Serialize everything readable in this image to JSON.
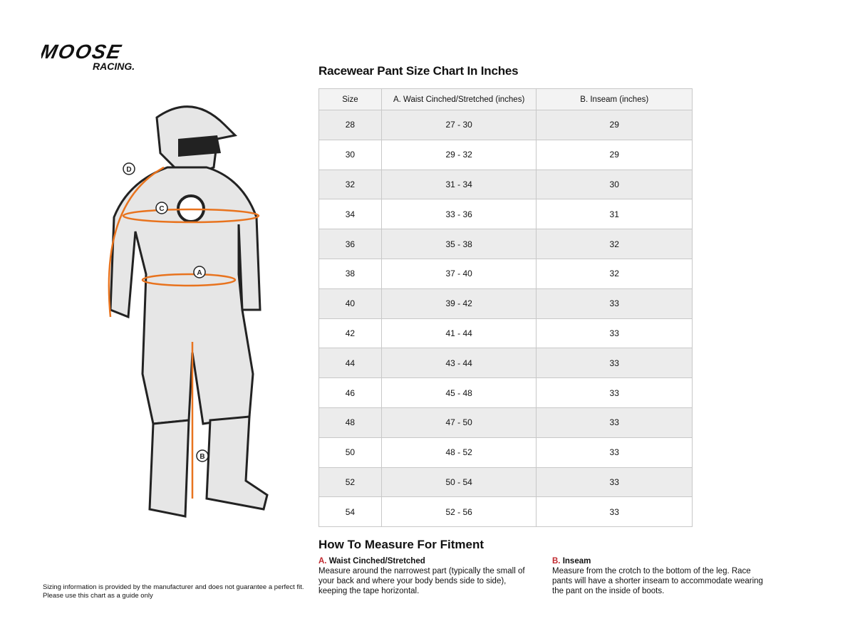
{
  "logo": {
    "text": "MOOSE RACING."
  },
  "table": {
    "title": "Racewear Pant Size Chart In Inches",
    "headers": [
      "Size",
      "A. Waist Cinched/Stretched (inches)",
      "B. Inseam (inches)"
    ],
    "rows": [
      [
        "28",
        "27 - 30",
        "29"
      ],
      [
        "30",
        "29 - 32",
        "29"
      ],
      [
        "32",
        "31 - 34",
        "30"
      ],
      [
        "34",
        "33 - 36",
        "31"
      ],
      [
        "36",
        "35 - 38",
        "32"
      ],
      [
        "38",
        "37 - 40",
        "32"
      ],
      [
        "40",
        "39 - 42",
        "33"
      ],
      [
        "42",
        "41 - 44",
        "33"
      ],
      [
        "44",
        "43 - 44",
        "33"
      ],
      [
        "46",
        "45 - 48",
        "33"
      ],
      [
        "48",
        "47 - 50",
        "33"
      ],
      [
        "50",
        "48 - 52",
        "33"
      ],
      [
        "52",
        "50 - 54",
        "33"
      ],
      [
        "54",
        "52 - 56",
        "33"
      ]
    ]
  },
  "figure": {
    "labels": [
      "A",
      "B",
      "C",
      "D"
    ],
    "accent": "#e8731e"
  },
  "how": {
    "title": "How To Measure For Fitment",
    "a": {
      "letter": "A.",
      "heading": "Waist Cinched/Stretched",
      "text": "Measure around the narrowest part (typically the small of your back and where your body bends side to side), keeping the tape horizontal."
    },
    "b": {
      "letter": "B.",
      "heading": "Inseam",
      "text": "Measure from the crotch to the bottom of the leg. Race pants will have a shorter inseam to accommodate wearing the pant on the inside of boots."
    }
  },
  "disclaimer": {
    "line1": "Sizing information is provided by the manufacturer and does not guarantee a perfect fit.",
    "line2": "Please use this chart as a guide only"
  }
}
